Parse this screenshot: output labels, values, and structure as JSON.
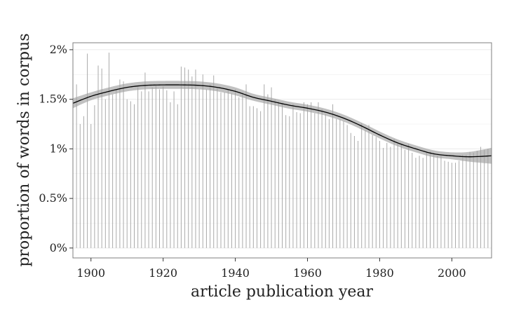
{
  "chart_data": {
    "type": "bar",
    "title": "",
    "xlabel": "article publication year",
    "ylabel": "proportion of words in corpus",
    "xlim": [
      1895,
      2011
    ],
    "ylim": [
      -0.1,
      2.07
    ],
    "x_ticks": [
      1900,
      1920,
      1940,
      1960,
      1980,
      2000
    ],
    "x_tick_labels": [
      "1900",
      "1920",
      "1940",
      "1960",
      "1980",
      "2000"
    ],
    "y_ticks": [
      0,
      0.5,
      1,
      1.5,
      2
    ],
    "y_tick_labels": [
      "0%",
      "0.5%",
      "1%",
      "1.5%",
      "2%"
    ],
    "grid": true,
    "background": "#ffffff",
    "panel_border_color": "#7f7f7f",
    "grid_color": "#ebebeb",
    "bar_color": "#aaaaaa",
    "smooth_color": "#000000",
    "ribbon_color": "#a0a0a0",
    "series": [
      {
        "type": "bars",
        "x": [
          1896,
          1897,
          1898,
          1899,
          1900,
          1901,
          1902,
          1903,
          1904,
          1905,
          1906,
          1907,
          1908,
          1909,
          1910,
          1911,
          1912,
          1913,
          1914,
          1915,
          1916,
          1917,
          1918,
          1919,
          1920,
          1921,
          1922,
          1923,
          1924,
          1925,
          1926,
          1927,
          1928,
          1929,
          1930,
          1931,
          1932,
          1933,
          1934,
          1935,
          1936,
          1937,
          1938,
          1939,
          1940,
          1941,
          1942,
          1943,
          1944,
          1945,
          1946,
          1947,
          1948,
          1949,
          1950,
          1951,
          1952,
          1953,
          1954,
          1955,
          1956,
          1957,
          1958,
          1959,
          1960,
          1961,
          1962,
          1963,
          1964,
          1965,
          1966,
          1967,
          1968,
          1969,
          1970,
          1971,
          1972,
          1973,
          1974,
          1975,
          1976,
          1977,
          1978,
          1979,
          1980,
          1981,
          1982,
          1983,
          1984,
          1985,
          1986,
          1987,
          1988,
          1989,
          1990,
          1991,
          1992,
          1993,
          1994,
          1995,
          1996,
          1997,
          1998,
          1999,
          2000,
          2001,
          2002,
          2003,
          2004,
          2005,
          2006,
          2007,
          2008,
          2009,
          2010
        ],
        "values": [
          1.65,
          1.25,
          1.33,
          1.96,
          1.25,
          1.44,
          1.84,
          1.81,
          1.5,
          1.97,
          1.55,
          1.6,
          1.7,
          1.68,
          1.5,
          1.48,
          1.45,
          1.62,
          1.58,
          1.77,
          1.58,
          1.62,
          1.64,
          1.6,
          1.63,
          1.59,
          1.47,
          1.58,
          1.45,
          1.83,
          1.82,
          1.8,
          1.73,
          1.8,
          1.6,
          1.75,
          1.6,
          1.65,
          1.74,
          1.61,
          1.57,
          1.57,
          1.6,
          1.56,
          1.6,
          1.52,
          1.57,
          1.65,
          1.43,
          1.43,
          1.41,
          1.38,
          1.65,
          1.55,
          1.62,
          1.5,
          1.48,
          1.45,
          1.34,
          1.33,
          1.45,
          1.37,
          1.36,
          1.47,
          1.45,
          1.47,
          1.36,
          1.47,
          1.4,
          1.35,
          1.3,
          1.45,
          1.3,
          1.3,
          1.28,
          1.24,
          1.16,
          1.13,
          1.08,
          1.26,
          1.19,
          1.24,
          1.14,
          1.12,
          1.08,
          1.01,
          1.06,
          1.02,
          1.1,
          1.07,
          1.05,
          0.99,
          1.05,
          0.96,
          0.91,
          0.93,
          0.91,
          0.97,
          0.97,
          0.96,
          0.93,
          0.93,
          0.88,
          0.87,
          0.86,
          0.86,
          0.88,
          0.94,
          0.94,
          0.97,
          0.96,
          0.98,
          1.02,
          0.99,
          1.0
        ]
      },
      {
        "type": "smooth",
        "x": [
          1895,
          1900,
          1905,
          1910,
          1915,
          1920,
          1925,
          1930,
          1935,
          1940,
          1945,
          1950,
          1955,
          1960,
          1965,
          1970,
          1975,
          1980,
          1985,
          1990,
          1995,
          2000,
          2005,
          2011
        ],
        "values": [
          1.46,
          1.53,
          1.58,
          1.62,
          1.64,
          1.645,
          1.645,
          1.64,
          1.62,
          1.58,
          1.52,
          1.48,
          1.44,
          1.41,
          1.37,
          1.31,
          1.23,
          1.14,
          1.06,
          1.0,
          0.95,
          0.93,
          0.92,
          0.93
        ],
        "band_halfwidth": [
          0.05,
          0.04,
          0.04,
          0.04,
          0.04,
          0.04,
          0.04,
          0.04,
          0.04,
          0.04,
          0.035,
          0.035,
          0.035,
          0.035,
          0.035,
          0.035,
          0.035,
          0.035,
          0.035,
          0.035,
          0.035,
          0.035,
          0.05,
          0.08
        ]
      }
    ]
  }
}
